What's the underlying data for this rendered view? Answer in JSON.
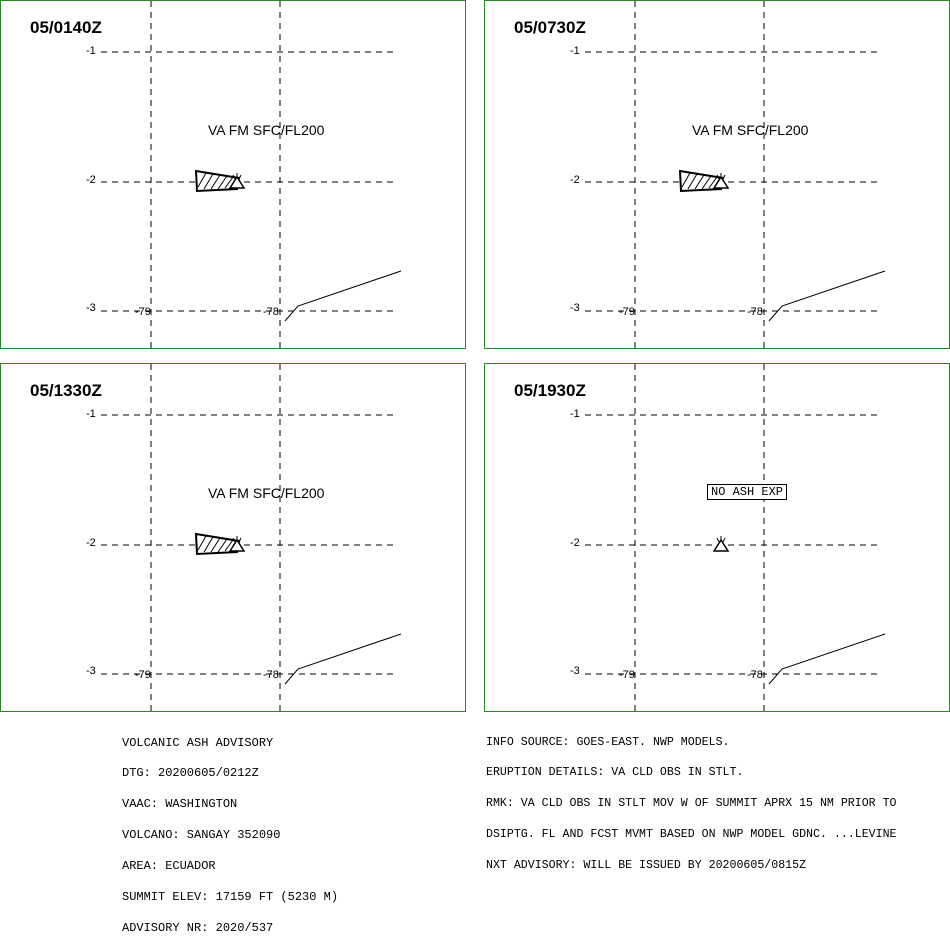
{
  "panels": [
    {
      "time": "05/0140Z",
      "label": "VA FM SFC/FL200",
      "ash": true
    },
    {
      "time": "05/0730Z",
      "label": "VA FM SFC/FL200",
      "ash": true
    },
    {
      "time": "05/1330Z",
      "label": "VA FM SFC/FL200",
      "ash": true
    },
    {
      "time": "05/1930Z",
      "label": "NO ASH EXP",
      "ash": false
    }
  ],
  "axes": {
    "lat_ticks": [
      "-1",
      "-2",
      "-3"
    ],
    "lon_ticks": [
      "-79",
      "-78"
    ]
  },
  "advisory": {
    "left": [
      "VOLCANIC ASH ADVISORY",
      "DTG: 20200605/0212Z",
      "VAAC: WASHINGTON",
      "VOLCANO: SANGAY 352090",
      "AREA: ECUADOR",
      "SUMMIT ELEV: 17159 FT (5230 M)",
      "ADVISORY NR: 2020/537"
    ],
    "right": [
      "INFO SOURCE: GOES-EAST. NWP MODELS.",
      "ERUPTION DETAILS: VA CLD OBS IN STLT.",
      "RMK: VA CLD OBS IN STLT MOV W OF SUMMIT APRX 15 NM PRIOR TO",
      "DSIPTG. FL AND FCST MVMT BASED ON NWP MODEL GDNC. ...LEVINE",
      "NXT ADVISORY: WILL BE ISSUED BY 20200605/0815Z"
    ]
  },
  "colors": {
    "panel_border": "#2a8a2a",
    "lines": "#000000"
  }
}
